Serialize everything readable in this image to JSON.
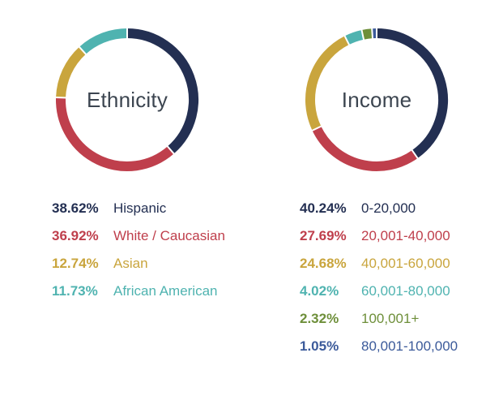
{
  "charts": [
    {
      "id": "ethnicity",
      "title": "Ethnicity",
      "items": [
        {
          "pct": "38.62%",
          "label": "Hispanic",
          "value": 38.62,
          "color": "#232f52",
          "text_color": "#232f52"
        },
        {
          "pct": "36.92%",
          "label": "White / Caucasian",
          "value": 36.92,
          "color": "#bf3f4c",
          "text_color": "#bf3f4c"
        },
        {
          "pct": "12.74%",
          "label": "Asian",
          "value": 12.74,
          "color": "#c9a53d",
          "text_color": "#c9a53d"
        },
        {
          "pct": "11.73%",
          "label": "African American",
          "value": 11.73,
          "color": "#4fb3b0",
          "text_color": "#4fb3b0"
        }
      ]
    },
    {
      "id": "income",
      "title": "Income",
      "items": [
        {
          "pct": "40.24%",
          "label": "0-20,000",
          "value": 40.24,
          "color": "#232f52",
          "text_color": "#232f52"
        },
        {
          "pct": "27.69%",
          "label": "20,001-40,000",
          "value": 27.69,
          "color": "#bf3f4c",
          "text_color": "#bf3f4c"
        },
        {
          "pct": "24.68%",
          "label": "40,001-60,000",
          "value": 24.68,
          "color": "#c9a53d",
          "text_color": "#c9a53d"
        },
        {
          "pct": "4.02%",
          "label": "60,001-80,000",
          "value": 4.02,
          "color": "#4fb3b0",
          "text_color": "#4fb3b0"
        },
        {
          "pct": "2.32%",
          "label": "100,001+",
          "value": 2.32,
          "color": "#6e8f3a",
          "text_color": "#6e8f3a"
        },
        {
          "pct": "1.05%",
          "label": "80,001-100,000",
          "value": 1.05,
          "color": "#3b5a9a",
          "text_color": "#3b5a9a"
        }
      ]
    }
  ],
  "chart_data": [
    {
      "type": "pie",
      "title": "Ethnicity",
      "categories": [
        "Hispanic",
        "White / Caucasian",
        "Asian",
        "African American"
      ],
      "values": [
        38.62,
        36.92,
        12.74,
        11.73
      ]
    },
    {
      "type": "pie",
      "title": "Income",
      "categories": [
        "0-20,000",
        "20,001-40,000",
        "40,001-60,000",
        "60,001-80,000",
        "100,001+",
        "80,001-100,000"
      ],
      "values": [
        40.24,
        27.69,
        24.68,
        4.02,
        2.32,
        1.05
      ]
    }
  ]
}
